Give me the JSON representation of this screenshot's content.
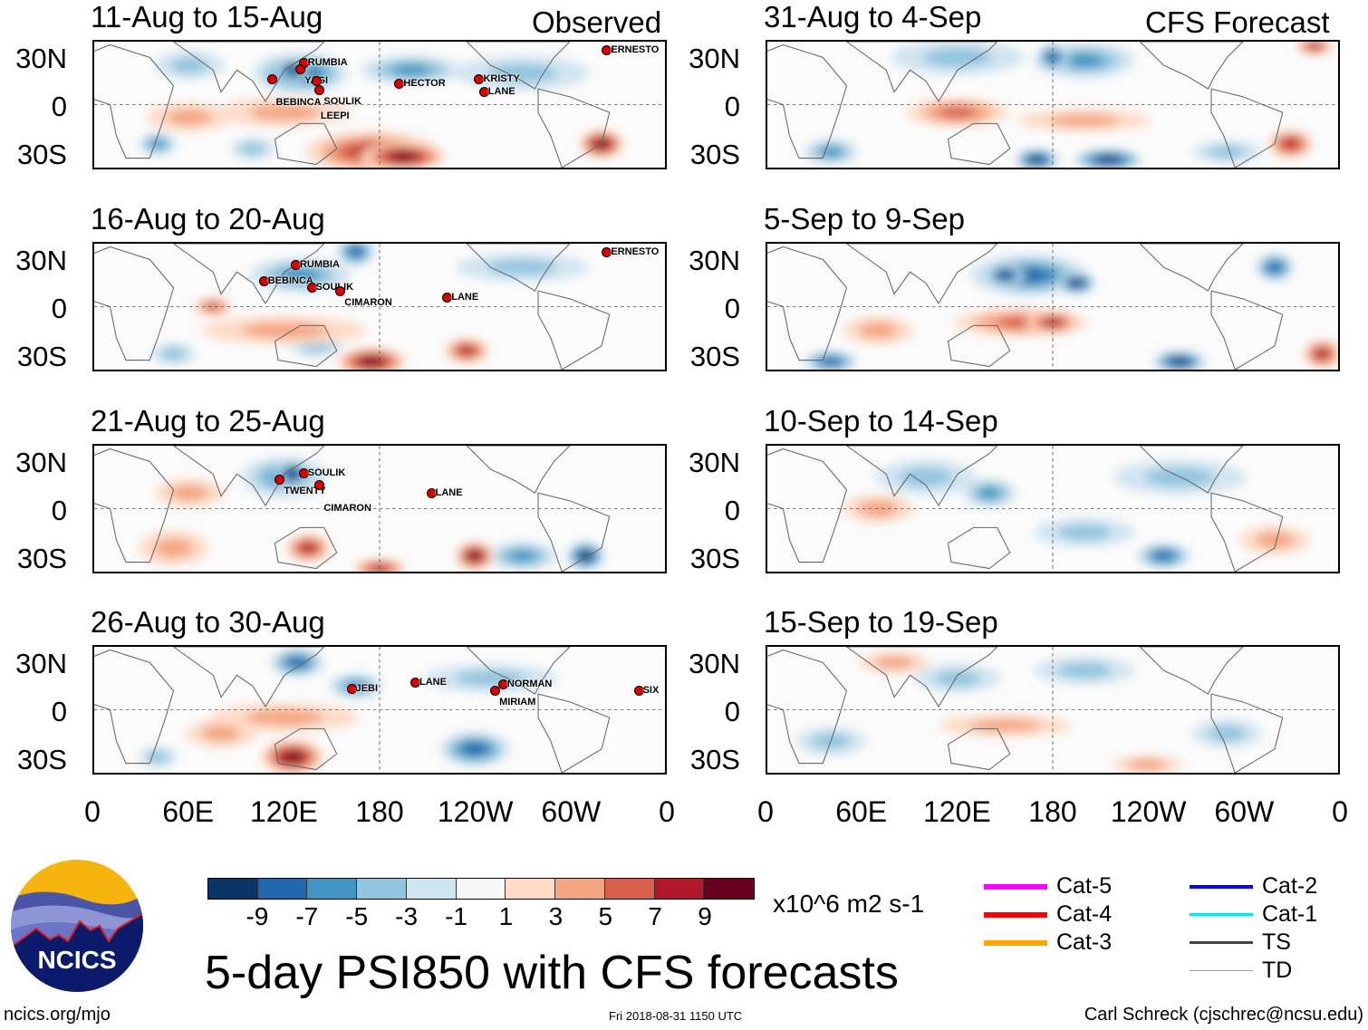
{
  "header": {
    "observed_label": "Observed",
    "forecast_label": "CFS Forecast"
  },
  "title": "5-day PSI850 with CFS forecasts",
  "timestamp": "Fri 2018-08-31 1150 UTC",
  "site": "ncics.org/mjo",
  "credit": "Carl Schreck (cjschrec@ncsu.edu)",
  "logo_text": "NCICS",
  "units": "x10^6 m2 s-1",
  "colorbar": {
    "colors": [
      "#0b3566",
      "#2266ac",
      "#4393c3",
      "#92c5de",
      "#d1e5f0",
      "#f7f7f7",
      "#fddbc7",
      "#f4a582",
      "#d6604d",
      "#b2182b",
      "#67001f"
    ],
    "labels": [
      "-9",
      "-7",
      "-5",
      "-3",
      "-1",
      "1",
      "3",
      "5",
      "7",
      "9"
    ]
  },
  "legend": [
    {
      "label": "Cat-5",
      "color": "#ff00ff",
      "w": 6
    },
    {
      "label": "Cat-4",
      "color": "#ff0000",
      "w": 6
    },
    {
      "label": "Cat-3",
      "color": "#ffa500",
      "w": 6
    },
    {
      "label": "Cat-2",
      "color": "#0000ff",
      "w": 4
    },
    {
      "label": "Cat-1",
      "color": "#00e5ee",
      "w": 3
    },
    {
      "label": "TS",
      "color": "#444444",
      "w": 3
    },
    {
      "label": "TD",
      "color": "#999999",
      "w": 1
    }
  ],
  "lat_labels": [
    "30N",
    "0",
    "30S"
  ],
  "lon_labels": [
    "0",
    "60E",
    "120E",
    "180",
    "120W",
    "60W",
    "0"
  ],
  "chart_data": {
    "type": "heatmap",
    "xlim": [
      0,
      360
    ],
    "ylim": [
      -40,
      40
    ],
    "panels": [
      {
        "title": "11-Aug to 15-Aug",
        "blobs": [
          [
            130,
            20,
            -7,
            28,
            12
          ],
          [
            125,
            22,
            -9,
            8,
            7
          ],
          [
            200,
            22,
            -5,
            30,
            8
          ],
          [
            270,
            20,
            -3,
            40,
            10
          ],
          [
            60,
            25,
            -3,
            20,
            8
          ],
          [
            175,
            -30,
            7,
            40,
            12
          ],
          [
            195,
            -33,
            9,
            25,
            8
          ],
          [
            120,
            -5,
            3,
            40,
            8
          ],
          [
            60,
            -8,
            3,
            25,
            8
          ],
          [
            40,
            -25,
            -5,
            10,
            6
          ],
          [
            320,
            -25,
            9,
            12,
            8
          ],
          [
            100,
            -28,
            -3,
            12,
            6
          ]
        ],
        "storms": [
          [
            "RUMBIA",
            135,
            26
          ],
          [
            "YAGI",
            133,
            22
          ],
          [
            "BEBINCA",
            115,
            16
          ],
          [
            "LEEPI",
            143,
            15
          ],
          [
            "SOULIK",
            145,
            9
          ],
          [
            "HECTOR",
            195,
            13
          ],
          [
            "KRISTY",
            245,
            16
          ],
          [
            "LANE",
            248,
            8
          ],
          [
            "ERNESTO",
            325,
            34
          ]
        ]
      },
      {
        "title": "16-Aug to 20-Aug",
        "blobs": [
          [
            130,
            20,
            -5,
            30,
            10
          ],
          [
            165,
            35,
            -7,
            10,
            8
          ],
          [
            175,
            -35,
            9,
            20,
            8
          ],
          [
            235,
            -28,
            7,
            12,
            7
          ],
          [
            75,
            0,
            5,
            10,
            5
          ],
          [
            50,
            -30,
            -3,
            12,
            6
          ],
          [
            140,
            -25,
            -3,
            15,
            6
          ],
          [
            120,
            -15,
            3,
            50,
            8
          ],
          [
            270,
            25,
            -3,
            40,
            8
          ]
        ],
        "storms": [
          [
            "RUMBIA",
            130,
            26
          ],
          [
            "BEBINCA",
            110,
            16
          ],
          [
            "SOULIK",
            140,
            12
          ],
          [
            "CIMARON",
            158,
            10
          ],
          [
            "LANE",
            225,
            6
          ],
          [
            "ERNESTO",
            325,
            34
          ]
        ]
      },
      {
        "title": "21-Aug to 25-Aug",
        "blobs": [
          [
            125,
            22,
            -9,
            8,
            8
          ],
          [
            120,
            20,
            -5,
            25,
            12
          ],
          [
            135,
            -25,
            7,
            12,
            8
          ],
          [
            240,
            -30,
            9,
            10,
            8
          ],
          [
            310,
            -30,
            -9,
            10,
            8
          ],
          [
            270,
            -30,
            -5,
            20,
            8
          ],
          [
            180,
            -38,
            7,
            15,
            5
          ],
          [
            60,
            10,
            3,
            20,
            8
          ],
          [
            50,
            -25,
            3,
            20,
            10
          ]
        ],
        "storms": [
          [
            "SOULIK",
            135,
            22
          ],
          [
            "TWENTY",
            120,
            18
          ],
          [
            "CIMARON",
            145,
            15
          ],
          [
            "LANE",
            215,
            10
          ]
        ]
      },
      {
        "title": "26-Aug to 30-Aug",
        "blobs": [
          [
            128,
            30,
            -7,
            15,
            8
          ],
          [
            120,
            -5,
            3,
            45,
            8
          ],
          [
            125,
            -30,
            9,
            18,
            10
          ],
          [
            240,
            -25,
            -7,
            20,
            10
          ],
          [
            165,
            15,
            -5,
            15,
            7
          ],
          [
            250,
            20,
            -3,
            40,
            8
          ],
          [
            80,
            -15,
            3,
            20,
            8
          ],
          [
            40,
            -30,
            -3,
            10,
            6
          ]
        ],
        "storms": [
          [
            "JEBI",
            165,
            13
          ],
          [
            "LANE",
            205,
            17
          ],
          [
            "NORMAN",
            260,
            16
          ],
          [
            "MIRIAM",
            255,
            12
          ],
          [
            "SIX",
            345,
            12
          ]
        ]
      },
      {
        "title": "31-Aug to 4-Sep",
        "blobs": [
          [
            180,
            30,
            -7,
            8,
            8
          ],
          [
            200,
            28,
            -5,
            30,
            10
          ],
          [
            120,
            30,
            -3,
            40,
            10
          ],
          [
            170,
            -35,
            -9,
            12,
            6
          ],
          [
            215,
            -35,
            -9,
            20,
            6
          ],
          [
            120,
            -5,
            5,
            30,
            8
          ],
          [
            200,
            -10,
            3,
            40,
            6
          ],
          [
            330,
            -25,
            7,
            12,
            8
          ],
          [
            40,
            -30,
            -5,
            15,
            7
          ],
          [
            290,
            -30,
            -3,
            20,
            6
          ],
          [
            345,
            37,
            7,
            10,
            4
          ]
        ],
        "storms": []
      },
      {
        "title": "5-Sep to 9-Sep",
        "blobs": [
          [
            165,
            20,
            -7,
            35,
            12
          ],
          [
            150,
            20,
            -9,
            10,
            6
          ],
          [
            195,
            15,
            -9,
            10,
            6
          ],
          [
            320,
            25,
            -7,
            10,
            8
          ],
          [
            180,
            -10,
            7,
            15,
            6
          ],
          [
            160,
            -10,
            5,
            40,
            8
          ],
          [
            40,
            -35,
            -7,
            15,
            6
          ],
          [
            260,
            -35,
            -9,
            15,
            6
          ],
          [
            350,
            -30,
            7,
            10,
            8
          ],
          [
            70,
            -15,
            3,
            20,
            8
          ]
        ],
        "storms": []
      },
      {
        "title": "10-Sep to 14-Sep",
        "blobs": [
          [
            140,
            10,
            -5,
            15,
            8
          ],
          [
            100,
            20,
            -3,
            30,
            10
          ],
          [
            260,
            20,
            -3,
            40,
            10
          ],
          [
            250,
            -30,
            -7,
            15,
            7
          ],
          [
            70,
            0,
            3,
            20,
            8
          ],
          [
            200,
            -15,
            -3,
            30,
            8
          ],
          [
            320,
            -20,
            3,
            20,
            8
          ]
        ],
        "storms": []
      },
      {
        "title": "15-Sep to 19-Sep",
        "blobs": [
          [
            120,
            20,
            -3,
            25,
            8
          ],
          [
            80,
            30,
            3,
            20,
            6
          ],
          [
            200,
            25,
            -3,
            30,
            8
          ],
          [
            150,
            -10,
            3,
            40,
            6
          ],
          [
            40,
            -20,
            -3,
            20,
            8
          ],
          [
            290,
            -15,
            -3,
            20,
            8
          ],
          [
            240,
            -35,
            3,
            20,
            5
          ]
        ],
        "storms": []
      }
    ]
  }
}
